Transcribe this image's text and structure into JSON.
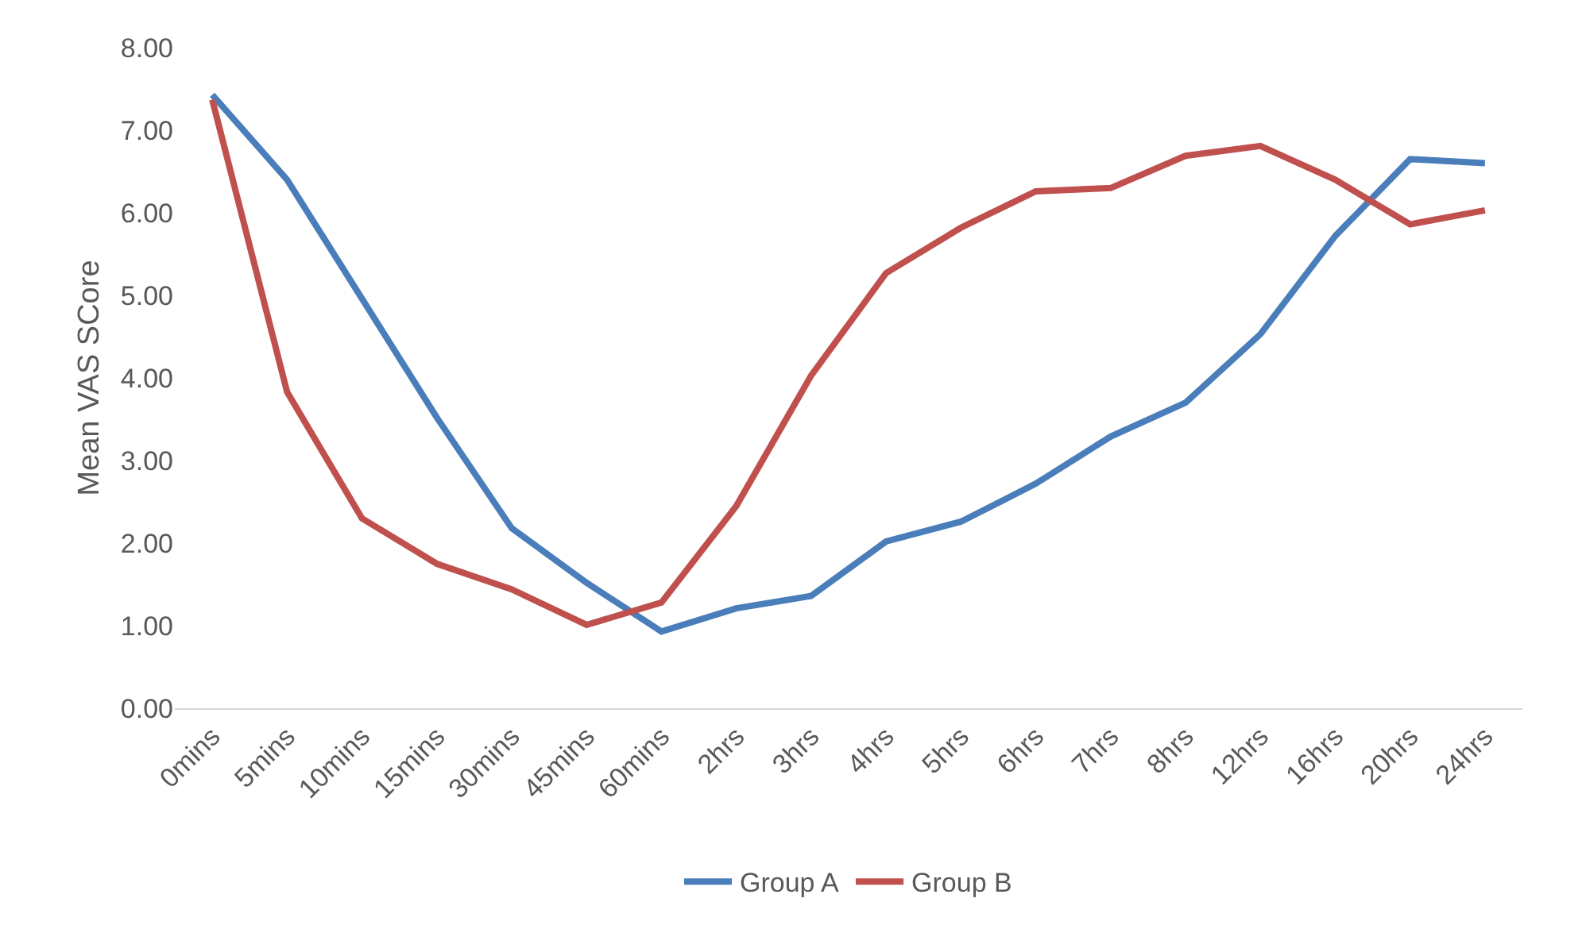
{
  "chart_data": {
    "type": "line",
    "ylabel": "Mean VAS SCore",
    "categories": [
      "0mins",
      "5mins",
      "10mins",
      "15mins",
      "30mins",
      "45mins",
      "60mins",
      "2hrs",
      "3hrs",
      "4hrs",
      "5hrs",
      "6hrs",
      "7hrs",
      "8hrs",
      "12hrs",
      "16hrs",
      "20hrs",
      "24hrs"
    ],
    "series": [
      {
        "name": "Group A",
        "color": "#4a7ebb",
        "values": [
          7.43,
          6.4,
          4.96,
          3.52,
          2.18,
          1.52,
          0.93,
          1.21,
          1.36,
          2.02,
          2.26,
          2.72,
          3.29,
          3.7,
          4.53,
          5.72,
          6.65,
          6.6
        ]
      },
      {
        "name": "Group B",
        "color": "#c0504d",
        "values": [
          7.37,
          3.83,
          2.3,
          1.75,
          1.44,
          1.01,
          1.28,
          2.45,
          4.03,
          5.27,
          5.82,
          6.26,
          6.3,
          6.69,
          6.81,
          6.4,
          5.86,
          6.03
        ]
      }
    ],
    "ylim": [
      0,
      8
    ],
    "yticks": [
      {
        "value": 0,
        "label": "0.00"
      },
      {
        "value": 1,
        "label": "1.00"
      },
      {
        "value": 2,
        "label": "2.00"
      },
      {
        "value": 3,
        "label": "3.00"
      },
      {
        "value": 4,
        "label": "4.00"
      },
      {
        "value": 5,
        "label": "5.00"
      },
      {
        "value": 6,
        "label": "6.00"
      },
      {
        "value": 7,
        "label": "7.00"
      },
      {
        "value": 8,
        "label": "8.00"
      }
    ],
    "grid": false,
    "legend": "bottom",
    "marker": "none",
    "line_style": "solid"
  }
}
